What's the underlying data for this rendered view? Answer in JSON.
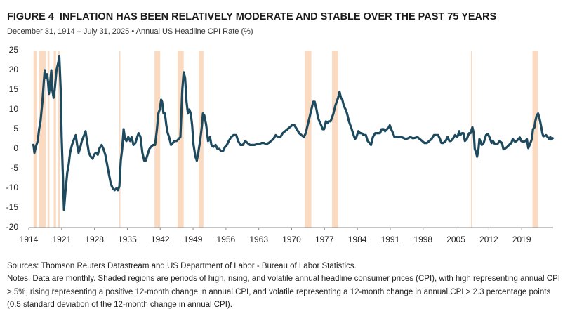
{
  "chart_data": {
    "type": "line",
    "title": "FIGURE 4  INFLATION HAS BEEN RELATIVELY MODERATE AND STABLE OVER THE PAST 75 YEARS",
    "subtitle": "December 31, 1914 – July 31, 2025 • Annual US Headline CPI Rate (%)",
    "xlim": [
      1914,
      2025.7
    ],
    "xticks": [
      1914,
      1921,
      1928,
      1935,
      1942,
      1949,
      1956,
      1963,
      1970,
      1977,
      1984,
      1991,
      1998,
      2005,
      2012,
      2019
    ],
    "ylim": [
      -20,
      25
    ],
    "yticks": [
      -20,
      -15,
      -10,
      -5,
      0,
      5,
      10,
      15,
      20,
      25
    ],
    "grid": false,
    "shade_color": "#f9d4b6",
    "shaded_regions": [
      [
        1915.0,
        1915.7
      ],
      [
        1916.2,
        1917.6
      ],
      [
        1918.0,
        1918.4
      ],
      [
        1919.3,
        1919.8
      ],
      [
        1920.2,
        1920.6
      ],
      [
        1933.3,
        1933.5
      ],
      [
        1940.8,
        1942.0
      ],
      [
        1945.7,
        1947.0
      ],
      [
        1950.2,
        1951.2
      ],
      [
        1972.8,
        1974.2
      ],
      [
        1978.6,
        1979.9
      ],
      [
        2008.2,
        2008.4
      ],
      [
        2021.3,
        2022.5
      ]
    ],
    "series": [
      {
        "name": "Annual US Headline CPI Rate",
        "color": "#1d4a5f",
        "x": [
          1914.9,
          1915.0,
          1915.2,
          1915.5,
          1915.9,
          1916.2,
          1916.5,
          1916.9,
          1917.2,
          1917.4,
          1917.6,
          1917.9,
          1918.1,
          1918.3,
          1918.5,
          1918.8,
          1919.0,
          1919.3,
          1919.6,
          1919.9,
          1920.3,
          1920.5,
          1920.8,
          1921.0,
          1921.3,
          1921.5,
          1921.8,
          1922.2,
          1922.5,
          1922.8,
          1923.2,
          1923.5,
          1923.8,
          1924.0,
          1924.3,
          1924.6,
          1924.9,
          1925.3,
          1925.8,
          1926.1,
          1926.4,
          1926.8,
          1927.2,
          1927.6,
          1927.9,
          1928.3,
          1928.7,
          1929.0,
          1929.5,
          1929.9,
          1930.3,
          1930.7,
          1931.0,
          1931.5,
          1931.9,
          1932.3,
          1932.7,
          1933.0,
          1933.3,
          1933.6,
          1933.9,
          1934.2,
          1934.5,
          1934.8,
          1935.2,
          1935.6,
          1935.9,
          1936.3,
          1936.7,
          1937.1,
          1937.4,
          1937.8,
          1938.2,
          1938.6,
          1938.9,
          1939.3,
          1939.7,
          1940.0,
          1940.5,
          1940.9,
          1941.3,
          1941.6,
          1941.9,
          1942.2,
          1942.4,
          1942.7,
          1943.0,
          1943.3,
          1943.6,
          1943.9,
          1944.3,
          1944.7,
          1945.0,
          1945.5,
          1945.9,
          1946.3,
          1946.5,
          1946.7,
          1947.0,
          1947.3,
          1947.6,
          1947.9,
          1948.2,
          1948.5,
          1948.8,
          1949.1,
          1949.5,
          1949.8,
          1950.1,
          1950.5,
          1950.9,
          1951.1,
          1951.4,
          1951.8,
          1952.2,
          1952.6,
          1952.9,
          1953.3,
          1953.8,
          1954.2,
          1954.6,
          1954.9,
          1955.4,
          1955.8,
          1956.2,
          1956.6,
          1957.1,
          1957.6,
          1958.2,
          1958.6,
          1959.1,
          1959.6,
          1960.1,
          1960.6,
          1961.1,
          1961.6,
          1962.1,
          1962.6,
          1963.1,
          1963.6,
          1964.1,
          1964.6,
          1965.1,
          1965.6,
          1966.1,
          1966.6,
          1967.1,
          1967.6,
          1968.1,
          1968.6,
          1969.1,
          1969.6,
          1970.1,
          1970.6,
          1971.1,
          1971.6,
          1972.1,
          1972.6,
          1973.0,
          1973.4,
          1973.8,
          1974.2,
          1974.6,
          1974.9,
          1975.3,
          1975.6,
          1975.9,
          1976.3,
          1976.6,
          1976.9,
          1977.3,
          1977.6,
          1977.9,
          1978.3,
          1978.6,
          1978.9,
          1979.3,
          1979.6,
          1979.9,
          1980.2,
          1980.5,
          1980.8,
          1981.1,
          1981.5,
          1981.8,
          1982.2,
          1982.5,
          1982.8,
          1983.2,
          1983.5,
          1983.8,
          1984.2,
          1984.6,
          1984.9,
          1985.3,
          1985.8,
          1986.2,
          1986.6,
          1986.9,
          1987.3,
          1987.8,
          1988.3,
          1988.8,
          1989.2,
          1989.6,
          1989.9,
          1990.3,
          1990.7,
          1990.9,
          1991.2,
          1991.6,
          1991.9,
          1992.3,
          1992.8,
          1993.3,
          1993.8,
          1994.3,
          1994.8,
          1995.3,
          1995.8,
          1996.3,
          1996.8,
          1997.3,
          1997.8,
          1998.3,
          1998.8,
          1999.3,
          1999.8,
          2000.3,
          2000.8,
          2001.2,
          2001.6,
          2001.9,
          2002.3,
          2002.8,
          2003.2,
          2003.6,
          2003.9,
          2004.3,
          2004.8,
          2005.3,
          2005.7,
          2005.9,
          2006.3,
          2006.6,
          2006.9,
          2007.3,
          2007.8,
          2008.1,
          2008.5,
          2008.8,
          2009.0,
          2009.3,
          2009.5,
          2009.8,
          2010.0,
          2010.5,
          2010.9,
          2011.4,
          2011.8,
          2012.2,
          2012.6,
          2012.9,
          2013.3,
          2013.8,
          2014.3,
          2014.8,
          2015.1,
          2015.5,
          2015.9,
          2016.3,
          2016.8,
          2017.1,
          2017.6,
          2017.9,
          2018.3,
          2018.6,
          2018.9,
          2019.3,
          2019.8,
          2020.1,
          2020.4,
          2020.8,
          2021.2,
          2021.4,
          2021.7,
          2021.9,
          2022.2,
          2022.5,
          2022.8,
          2023.1,
          2023.4,
          2023.6,
          2023.9,
          2024.2,
          2024.5,
          2024.8,
          2025.1,
          2025.3,
          2025.6
        ],
        "values": [
          1,
          1,
          -1,
          0.5,
          2,
          5,
          7,
          12,
          17,
          20,
          18,
          19,
          17,
          14,
          16,
          20,
          15,
          13,
          16,
          20,
          22,
          23.5,
          15,
          3,
          -8,
          -15.5,
          -11,
          -6,
          -4,
          -1,
          1,
          2,
          3,
          3.5,
          1,
          -1,
          0,
          2,
          3.5,
          4.5,
          2,
          -1,
          -2,
          -2.5,
          -1.5,
          -1,
          -1.5,
          0,
          1,
          0,
          -1.5,
          -4,
          -6,
          -9,
          -10,
          -10.5,
          -10,
          -10.5,
          -9.5,
          -3,
          0,
          5,
          2.5,
          2,
          3,
          2,
          3,
          1,
          1.5,
          3,
          4,
          3,
          -1,
          -3,
          -3,
          -1.5,
          0,
          0.5,
          1,
          1,
          5,
          9,
          10,
          12.5,
          12,
          9,
          9,
          6,
          4,
          3,
          1,
          1.5,
          2,
          2,
          2.5,
          3,
          9,
          15,
          19.5,
          18,
          12,
          9,
          10,
          9,
          6,
          1,
          -2,
          -3,
          -1,
          2,
          6,
          9,
          8.5,
          6,
          2,
          3,
          1,
          0.5,
          1,
          0,
          0,
          -0.5,
          -0.5,
          0.5,
          1,
          2,
          3,
          3.5,
          3.5,
          2,
          1,
          1,
          2,
          1.5,
          1,
          1,
          1,
          1.2,
          1.2,
          1.5,
          1.5,
          1.2,
          1.5,
          2,
          2.5,
          3.5,
          3,
          3,
          4,
          4.5,
          5,
          5.5,
          6,
          6,
          5,
          4,
          3.5,
          3,
          4,
          6,
          8,
          10,
          12,
          12,
          10,
          8,
          7,
          6,
          5,
          5,
          7,
          6.5,
          7,
          7,
          8,
          9,
          11,
          12,
          13,
          14.5,
          13,
          12.5,
          11,
          10,
          9,
          7,
          6,
          5,
          3.5,
          2.5,
          3,
          4.5,
          4,
          4,
          3.5,
          3.5,
          2,
          1.5,
          1,
          3,
          4,
          4,
          4,
          5,
          5,
          4.5,
          5,
          5.5,
          6,
          5,
          4,
          3,
          3,
          3,
          3,
          2.8,
          2.5,
          2.7,
          3,
          2.7,
          2.8,
          3,
          2.5,
          2,
          1.5,
          1.5,
          2,
          2.5,
          3.5,
          3.5,
          3.5,
          2.5,
          1.5,
          1.5,
          2,
          3,
          2,
          2,
          2.5,
          3.5,
          3,
          4.5,
          3.5,
          4,
          4,
          2,
          2.5,
          4,
          4,
          5.5,
          4,
          0,
          -1,
          -2,
          0,
          2.5,
          1,
          1.5,
          3.5,
          3.8,
          2.8,
          1.5,
          2,
          1.2,
          1.2,
          2,
          1.5,
          -0.1,
          0.1,
          0.5,
          1,
          1.5,
          2.5,
          1.8,
          2,
          2.5,
          2.9,
          2,
          1.8,
          2,
          2.5,
          0.2,
          1.3,
          2.6,
          5,
          5.4,
          7,
          8.5,
          9,
          7.7,
          6,
          4,
          3.2,
          3.3,
          3.5,
          3,
          2.6,
          3,
          2.4,
          2.7
        ]
      }
    ],
    "sources": "Sources: Thomson Reuters Datastream and US Department of Labor - Bureau of Labor Statistics.",
    "notes": "Notes: Data are monthly. Shaded regions are periods of high, rising, and volatile annual headline consumer prices (CPI), with high representing annual CPI > 5%, rising representing a positive 12-month change in annual CPI, and volatile representing a 12-month change in annual CPI > 2.3 percentage points (0.5 standard deviation of the 12-month change in annual CPI)."
  }
}
